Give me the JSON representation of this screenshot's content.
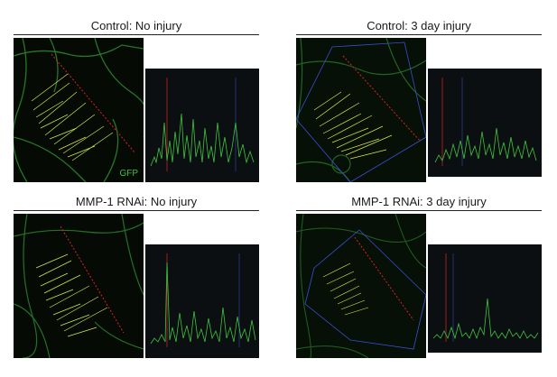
{
  "panels": [
    {
      "title": "Control: No injury"
    },
    {
      "title": "Control: 3 day injury"
    },
    {
      "title": "MMP-1 RNAi: No injury"
    },
    {
      "title": "MMP-1 RNAi: 3 day injury"
    }
  ],
  "channel_label": "GFP",
  "colors": {
    "fluorescence": "#3ec63e",
    "profile_trace": "#d8e84a",
    "scan_line": "#e02020",
    "roi_box": "#3a4fd0",
    "plot_background": "#0c0f12"
  }
}
